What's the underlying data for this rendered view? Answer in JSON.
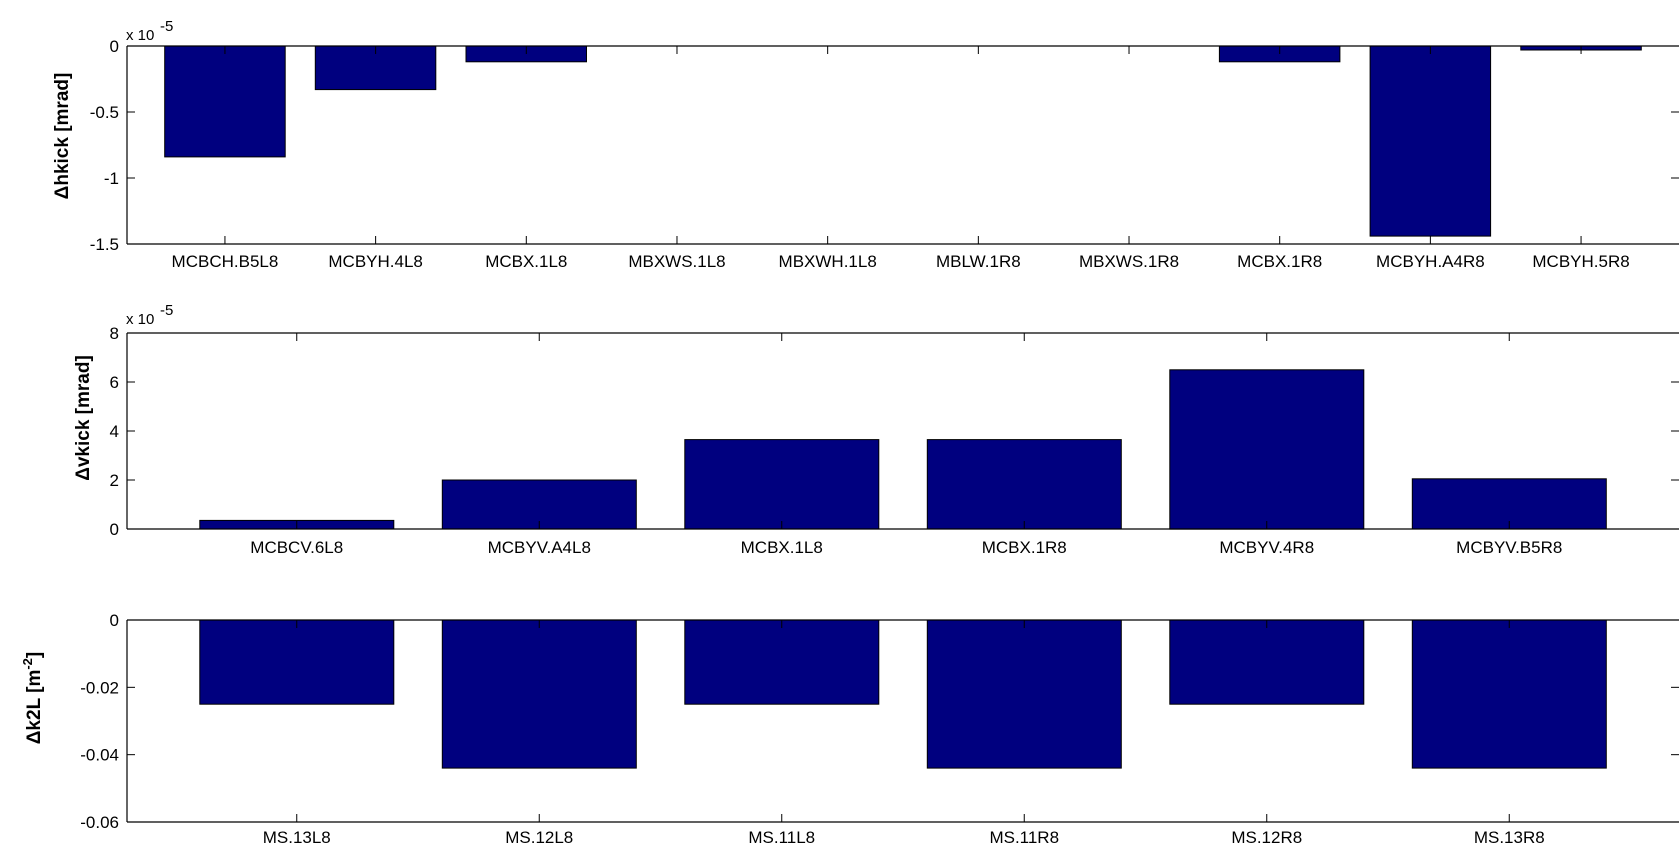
{
  "chart_data": [
    {
      "type": "bar",
      "ylabel": "Δhkick  [mrad]",
      "exponent_label": "x 10",
      "exponent_power": "-5",
      "ylim": [
        -1.5,
        0
      ],
      "yticks": [
        0,
        -0.5,
        -1,
        -1.5
      ],
      "ytick_labels": [
        "0",
        "-0.5",
        "-1",
        "-1.5"
      ],
      "categories": [
        "MCBCH.B5L8",
        "MCBYH.4L8",
        "MCBX.1L8",
        "MBXWS.1L8",
        "MBXWH.1L8",
        "MBLW.1R8",
        "MBXWS.1R8",
        "MCBX.1R8",
        "MCBYH.A4R8",
        "MCBYH.5R8"
      ],
      "values": [
        -0.84,
        -0.33,
        -0.12,
        0,
        0,
        0,
        0,
        -0.12,
        -1.44,
        -0.03
      ],
      "bar_color": "#00007f"
    },
    {
      "type": "bar",
      "ylabel": "Δvkick  [mrad]",
      "exponent_label": "x 10",
      "exponent_power": "-5",
      "ylim": [
        0,
        8
      ],
      "yticks": [
        0,
        2,
        4,
        6,
        8
      ],
      "ytick_labels": [
        "0",
        "2",
        "4",
        "6",
        "8"
      ],
      "categories": [
        "MCBCV.6L8",
        "MCBYV.A4L8",
        "MCBX.1L8",
        "MCBX.1R8",
        "MCBYV.4R8",
        "MCBYV.B5R8"
      ],
      "values": [
        0.35,
        2.0,
        3.65,
        3.65,
        6.5,
        2.05
      ],
      "bar_color": "#00007f"
    },
    {
      "type": "bar",
      "ylabel": "Δk2L [m",
      "ylabel_power": "-2",
      "ylabel_tail": "]",
      "ylim": [
        -0.06,
        0
      ],
      "yticks": [
        0,
        -0.02,
        -0.04,
        -0.06
      ],
      "ytick_labels": [
        "0",
        "-0.02",
        "-0.04",
        "-0.06"
      ],
      "categories": [
        "MS.13L8",
        "MS.12L8",
        "MS.11L8",
        "MS.11R8",
        "MS.12R8",
        "MS.13R8"
      ],
      "values": [
        -0.025,
        -0.044,
        -0.025,
        -0.044,
        -0.025,
        -0.044
      ],
      "bar_color": "#00007f"
    }
  ]
}
